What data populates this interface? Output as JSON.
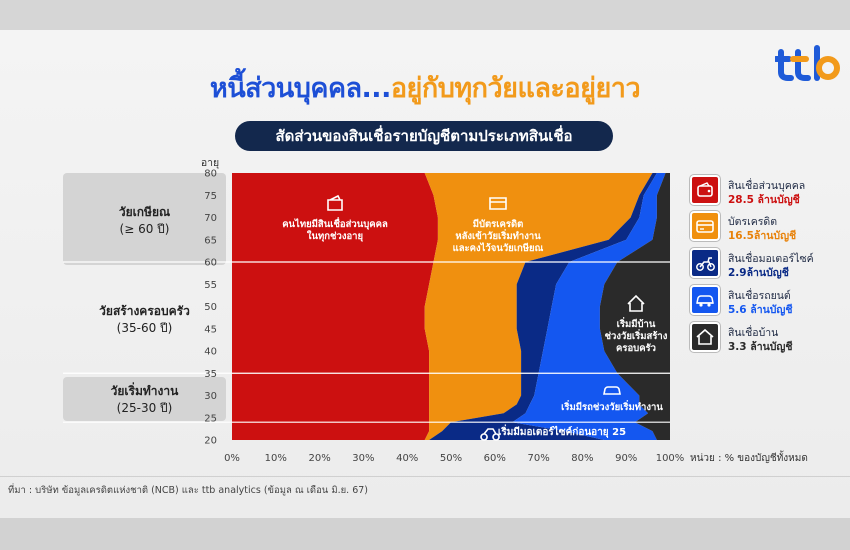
{
  "title": {
    "part1": "หนี้ส่วนบุคคล...",
    "part2": "อยู่กับทุกวัยและอยู่ยาว"
  },
  "subtitle": "สัดส่วนของสินเชื่อรายบัญชีตามประเภทสินเชื่อ",
  "brand": {
    "logo_text": "ttb",
    "color_left": "#1f5bd8",
    "color_right": "#f29a1b"
  },
  "age_groups": [
    {
      "name": "วัยเกษียณ",
      "range": "(≥ 60 ปี)"
    },
    {
      "name": "วัยสร้างครอบครัว",
      "range": "(35-60 ปี)"
    },
    {
      "name": "วัยเริ่มทำงาน",
      "range": "(25-30 ปี)"
    }
  ],
  "annotations": [
    {
      "text": [
        "คนไทยมีสินเชื่อส่วนบุคคล",
        "ในทุกช่วงอายุ"
      ],
      "icon": "wallet-icon"
    },
    {
      "text": [
        "มีบัตรเครดิต",
        "หลังเข้าวัยเริ่มทำงาน",
        "และคงไว้จนวัยเกษียณ"
      ],
      "icon": "credit-card-icon"
    },
    {
      "text": [
        "เริ่มมีบ้าน",
        "ช่วงวัยเริ่มสร้าง",
        "ครอบครัว"
      ],
      "icon": "house-icon"
    },
    {
      "text": [
        "เริ่มมีรถช่วงวัยเริ่มทำงาน"
      ],
      "icon": "car-icon"
    },
    {
      "text": [
        "เริ่มมีมอเตอร์ไซค์ก่อนอายุ 25"
      ],
      "icon": "motorcycle-icon"
    }
  ],
  "legend": [
    {
      "name": "สินเชื่อส่วนบุคคล",
      "value": "28.5 ล้านบัญชี",
      "color": "#cc1010",
      "value_color": "#cc1010",
      "icon": "wallet-icon"
    },
    {
      "name": "บัตรเครดิต",
      "value": "16.5ล้านบัญชี",
      "color": "#f0900f",
      "value_color": "#e8820a",
      "icon": "credit-card-icon"
    },
    {
      "name": "สินเชื่อมอเตอร์ไซค์",
      "value": "2.9ล้านบัญชี",
      "color": "#0a2a86",
      "value_color": "#0a2a86",
      "icon": "motorcycle-icon"
    },
    {
      "name": "สินเชื่อรถยนต์",
      "value": "5.6 ล้านบัญชี",
      "color": "#1457f0",
      "value_color": "#1457f0",
      "icon": "car-icon"
    },
    {
      "name": "สินเชื่อบ้าน",
      "value": "3.3 ล้านบัญชี",
      "color": "#2a2a2a",
      "value_color": "#2a2a2a",
      "icon": "house-icon"
    }
  ],
  "unit_note": "หน่วย : % ของบัญชีทั้งหมด",
  "source": "ที่มา : บริษัท ข้อมูลเครดิตแห่งชาติ (NCB) และ ttb analytics (ข้อมูล ณ เดือน มิ.ย. 67)",
  "chart_data": {
    "type": "area",
    "stacking": "percent",
    "orientation": "horizontal",
    "ylabel": "อายุ",
    "ylim": [
      20,
      80
    ],
    "yticks": [
      "20",
      "25",
      "30",
      "35",
      "40",
      "45",
      "50",
      "55",
      "60",
      "65",
      "70",
      "75",
      "80"
    ],
    "xlim": [
      0,
      100
    ],
    "xticks": [
      "0%",
      "10%",
      "20%",
      "30%",
      "40%",
      "50%",
      "60%",
      "70%",
      "80%",
      "90%",
      "100%"
    ],
    "age_lines": [
      24,
      35,
      60
    ],
    "ages": [
      20,
      22,
      24,
      26,
      28,
      30,
      35,
      40,
      45,
      50,
      55,
      60,
      65,
      70,
      75,
      80
    ],
    "series": [
      {
        "name": "สินเชื่อส่วนบุคคล",
        "color": "#cc1010",
        "values": [
          44,
          45,
          45,
          45,
          45,
          45,
          45,
          45,
          44,
          44,
          45,
          46,
          47,
          47,
          46,
          44
        ]
      },
      {
        "name": "บัตรเครดิต",
        "color": "#f0900f",
        "values": [
          1,
          3,
          5,
          17,
          20,
          21,
          21,
          21,
          21,
          21,
          20,
          21,
          39,
          44,
          47,
          52
        ]
      },
      {
        "name": "สินเชื่อมอเตอร์ไซค์",
        "color": "#0a2a86",
        "values": [
          40,
          28,
          14,
          5,
          3,
          3,
          4,
          5,
          7,
          8,
          9,
          10,
          4,
          2,
          1,
          1
        ]
      },
      {
        "name": "สินเชื่อรถยนต์",
        "color": "#1457f0",
        "values": [
          12,
          20,
          28,
          28,
          25,
          24,
          18,
          14,
          12,
          11,
          11,
          11,
          6,
          4,
          3,
          2
        ]
      },
      {
        "name": "สินเชื่อบ้าน",
        "color": "#2a2a2a",
        "values": [
          3,
          4,
          8,
          5,
          7,
          7,
          12,
          15,
          16,
          16,
          15,
          12,
          4,
          3,
          3,
          1
        ]
      }
    ]
  }
}
